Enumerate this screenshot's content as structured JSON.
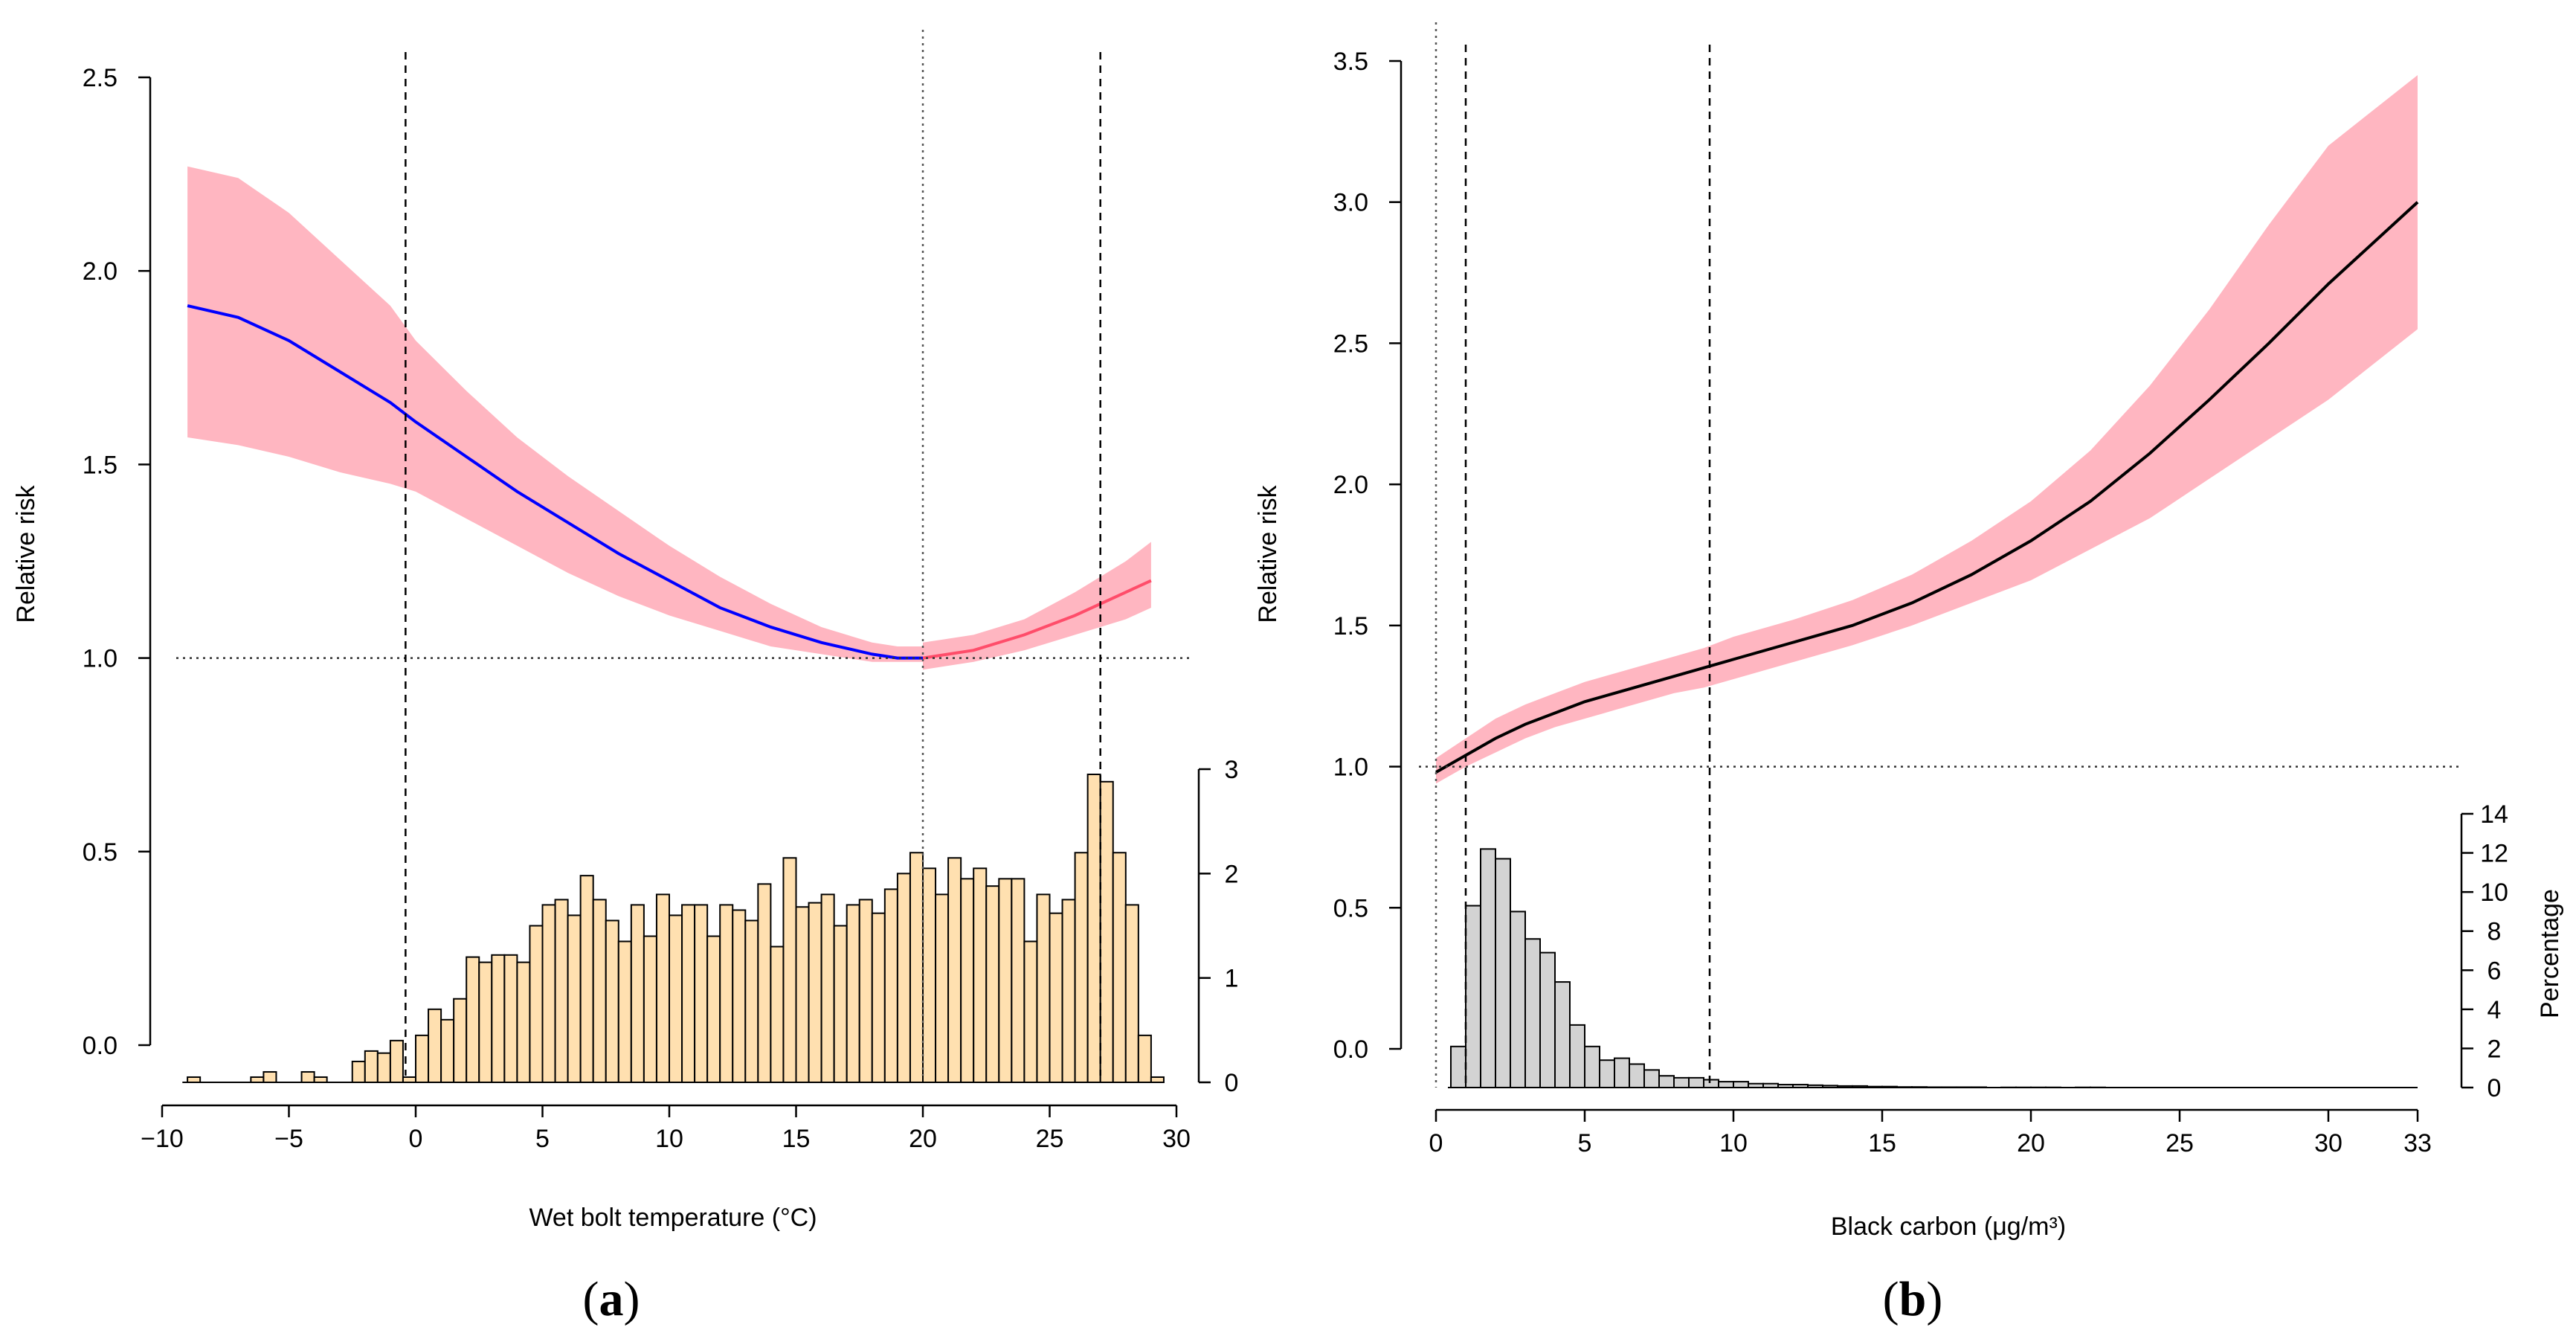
{
  "figure_labels": {
    "a": {
      "open": "(",
      "letter": "a",
      "close": ")"
    },
    "b": {
      "open": "(",
      "letter": "b",
      "close": ")"
    }
  },
  "chart_data": [
    {
      "type": "line",
      "panel": "a",
      "xlabel": "Wet bolt temperature (°C)",
      "ylabel": "Relative risk",
      "xlim": [
        -10,
        30
      ],
      "ylim": [
        -0.1,
        2.5
      ],
      "x_ticks": [
        -10,
        -5,
        0,
        5,
        10,
        15,
        20,
        25,
        30
      ],
      "x_tick_labels": [
        "−10",
        "−5",
        "0",
        "5",
        "10",
        "15",
        "20",
        "25",
        "30"
      ],
      "y_ticks": [
        0,
        0.5,
        1.0,
        1.5,
        2.0,
        2.5
      ],
      "y_tick_labels": [
        "0.0",
        "0.5",
        "1.0",
        "1.5",
        "2.0",
        "2.5"
      ],
      "reference_line": 1.0,
      "vlines_dashed": [
        -0.4,
        27.0
      ],
      "vlines_dotted": [
        20.0
      ],
      "colors": {
        "cold": "#0000ff",
        "heat": "#ff4d6a",
        "band": "#ffb6c1",
        "hist": "#ffe0b0"
      },
      "series": [
        {
          "name": "cold",
          "x": [
            -9,
            -7,
            -5,
            -3,
            -1,
            0,
            2,
            4,
            6,
            8,
            10,
            12,
            14,
            16,
            18,
            19,
            20
          ],
          "values": [
            1.91,
            1.88,
            1.82,
            1.74,
            1.66,
            1.61,
            1.52,
            1.43,
            1.35,
            1.27,
            1.2,
            1.13,
            1.08,
            1.04,
            1.01,
            1.0,
            1.0
          ],
          "lower": [
            1.57,
            1.55,
            1.52,
            1.48,
            1.45,
            1.43,
            1.36,
            1.29,
            1.22,
            1.16,
            1.11,
            1.07,
            1.03,
            1.01,
            0.99,
            0.99,
            0.99
          ],
          "upper": [
            2.27,
            2.24,
            2.15,
            2.03,
            1.91,
            1.82,
            1.69,
            1.57,
            1.47,
            1.38,
            1.29,
            1.21,
            1.14,
            1.08,
            1.04,
            1.03,
            1.03
          ]
        },
        {
          "name": "heat",
          "x": [
            20,
            22,
            24,
            26,
            28,
            29
          ],
          "values": [
            1.0,
            1.02,
            1.06,
            1.11,
            1.17,
            1.2
          ],
          "lower": [
            0.97,
            0.99,
            1.02,
            1.06,
            1.1,
            1.13
          ],
          "upper": [
            1.04,
            1.06,
            1.1,
            1.17,
            1.25,
            1.3
          ]
        }
      ],
      "histogram": {
        "ylabel": "",
        "ticks": [
          0,
          1,
          2,
          3
        ],
        "tick_labels": [
          "0",
          "1",
          "2",
          "3"
        ],
        "bin_start": -9,
        "bin_width": 0.5,
        "values": [
          0.05,
          0,
          0,
          0,
          0,
          0.05,
          0.1,
          0,
          0,
          0.1,
          0.05,
          0,
          0,
          0.2,
          0.3,
          0.28,
          0.4,
          0.05,
          0.45,
          0.7,
          0.6,
          0.8,
          1.2,
          1.15,
          1.22,
          1.22,
          1.15,
          1.5,
          1.7,
          1.75,
          1.6,
          1.98,
          1.75,
          1.55,
          1.35,
          1.7,
          1.4,
          1.8,
          1.6,
          1.7,
          1.7,
          1.4,
          1.7,
          1.65,
          1.55,
          1.9,
          1.3,
          2.15,
          1.68,
          1.72,
          1.8,
          1.5,
          1.7,
          1.75,
          1.62,
          1.85,
          2.0,
          2.2,
          2.05,
          1.8,
          2.15,
          1.95,
          2.05,
          1.88,
          1.95,
          1.95,
          1.35,
          1.8,
          1.62,
          1.75,
          2.2,
          2.95,
          2.88,
          2.2,
          1.7,
          0.45,
          0.05
        ]
      }
    },
    {
      "type": "line",
      "panel": "b",
      "xlabel": "Black carbon (μg/m³)",
      "ylabel": "Relative risk",
      "xlim": [
        0,
        33
      ],
      "ylim": [
        -0.15,
        3.5
      ],
      "x_ticks": [
        0,
        5,
        10,
        15,
        20,
        25,
        30,
        33
      ],
      "x_tick_labels": [
        "0",
        "5",
        "10",
        "15",
        "20",
        "25",
        "30",
        "33"
      ],
      "y_ticks": [
        0,
        0.5,
        1.0,
        1.5,
        2.0,
        2.5,
        3.0,
        3.5
      ],
      "y_tick_labels": [
        "0.0",
        "0.5",
        "1.0",
        "1.5",
        "2.0",
        "2.5",
        "3.0",
        "3.5"
      ],
      "reference_line": 1.0,
      "vlines_dashed": [
        1.0,
        9.2
      ],
      "vlines_dotted": [
        0.0
      ],
      "colors": {
        "line": "#000000",
        "band": "#ffb6c1",
        "hist": "#d3d3d3"
      },
      "series": [
        {
          "name": "exposure-response",
          "x": [
            0,
            1,
            2,
            3,
            4,
            5,
            6,
            7,
            8,
            9,
            10,
            12,
            14,
            16,
            18,
            20,
            22,
            24,
            26,
            28,
            30,
            33
          ],
          "values": [
            0.98,
            1.04,
            1.1,
            1.15,
            1.19,
            1.23,
            1.26,
            1.29,
            1.32,
            1.35,
            1.38,
            1.44,
            1.5,
            1.58,
            1.68,
            1.8,
            1.94,
            2.11,
            2.3,
            2.5,
            2.71,
            3.0
          ],
          "lower": [
            0.94,
            1.0,
            1.05,
            1.1,
            1.14,
            1.17,
            1.2,
            1.23,
            1.26,
            1.28,
            1.31,
            1.37,
            1.43,
            1.5,
            1.58,
            1.66,
            1.77,
            1.88,
            2.02,
            2.16,
            2.3,
            2.55
          ],
          "upper": [
            1.03,
            1.1,
            1.17,
            1.22,
            1.26,
            1.3,
            1.33,
            1.36,
            1.39,
            1.42,
            1.46,
            1.52,
            1.59,
            1.68,
            1.8,
            1.94,
            2.12,
            2.35,
            2.62,
            2.92,
            3.2,
            3.45
          ]
        }
      ],
      "histogram": {
        "ylabel": "Percentage",
        "ticks": [
          0,
          2,
          4,
          6,
          8,
          10,
          12,
          14
        ],
        "tick_labels": [
          "0",
          "2",
          "4",
          "6",
          "8",
          "10",
          "12",
          "14"
        ],
        "bin_start": 0.5,
        "bin_width": 0.5,
        "values": [
          2.1,
          9.3,
          12.2,
          11.7,
          9.0,
          7.6,
          6.9,
          5.4,
          3.2,
          2.1,
          1.4,
          1.5,
          1.2,
          0.9,
          0.6,
          0.5,
          0.5,
          0.4,
          0.3,
          0.3,
          0.2,
          0.2,
          0.15,
          0.15,
          0.12,
          0.1,
          0.08,
          0.08,
          0.05,
          0.05,
          0.03,
          0.03,
          0.02,
          0.02,
          0.02,
          0.02,
          0,
          0.01,
          0.01,
          0.01,
          0.01,
          0,
          0.01,
          0.01,
          0,
          0,
          0,
          0,
          0,
          0,
          0,
          0,
          0,
          0,
          0,
          0,
          0,
          0,
          0,
          0,
          0,
          0,
          0,
          0,
          0
        ]
      }
    }
  ]
}
